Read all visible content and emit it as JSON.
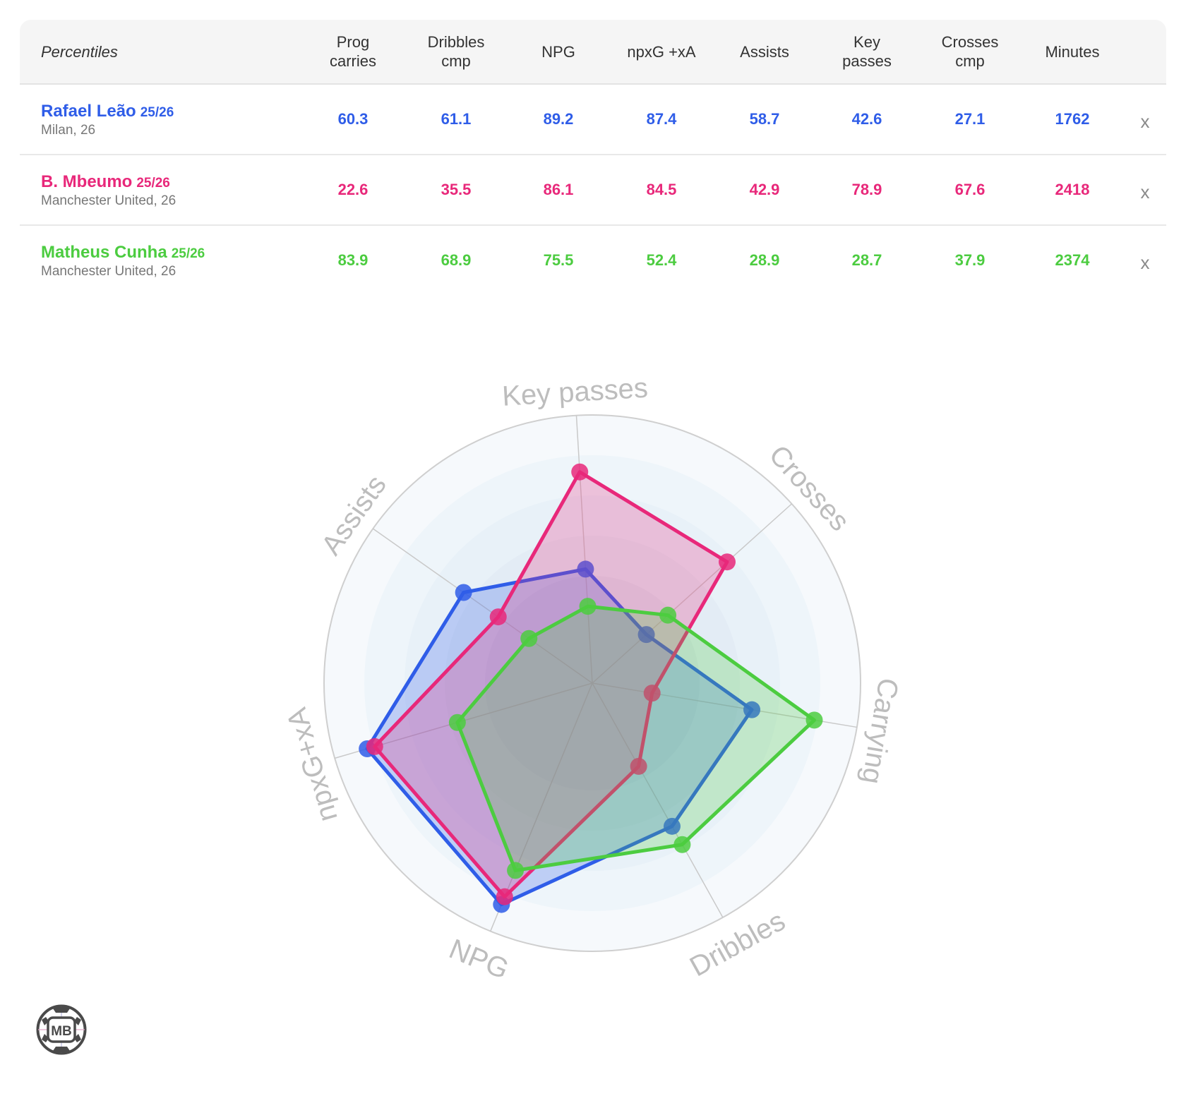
{
  "table": {
    "header_label": "Percentiles",
    "columns": [
      {
        "key": "prog_carries",
        "label_line1": "Prog",
        "label_line2": "carries"
      },
      {
        "key": "dribbles_cmp",
        "label_line1": "Dribbles",
        "label_line2": "cmp"
      },
      {
        "key": "npg",
        "label_line1": "NPG",
        "label_line2": ""
      },
      {
        "key": "npxg_xa",
        "label_line1": "npxG +xA",
        "label_line2": ""
      },
      {
        "key": "assists",
        "label_line1": "Assists",
        "label_line2": ""
      },
      {
        "key": "key_passes",
        "label_line1": "Key",
        "label_line2": "passes"
      },
      {
        "key": "crosses_cmp",
        "label_line1": "Crosses",
        "label_line2": "cmp"
      },
      {
        "key": "minutes",
        "label_line1": "Minutes",
        "label_line2": ""
      }
    ],
    "rows": [
      {
        "name": "Rafael Leão",
        "season": "25/26",
        "team_age": "Milan, 26",
        "color": "#2f5de8",
        "values": [
          "60.3",
          "61.1",
          "89.2",
          "87.4",
          "58.7",
          "42.6",
          "27.1",
          "1762"
        ],
        "remove_label": "x"
      },
      {
        "name": "B. Mbeumo",
        "season": "25/26",
        "team_age": "Manchester United, 26",
        "color": "#e8287a",
        "values": [
          "22.6",
          "35.5",
          "86.1",
          "84.5",
          "42.9",
          "78.9",
          "67.6",
          "2418"
        ],
        "remove_label": "x"
      },
      {
        "name": "Matheus Cunha",
        "season": "25/26",
        "team_age": "Manchester United, 26",
        "color": "#4ccc40",
        "values": [
          "83.9",
          "68.9",
          "75.5",
          "52.4",
          "28.9",
          "28.7",
          "37.9",
          "2374"
        ],
        "remove_label": "x"
      }
    ]
  },
  "chart_data": {
    "type": "radar",
    "title": "",
    "axes": [
      "Key passes",
      "Crosses",
      "Carrying",
      "Dribbles",
      "NPG",
      "npxG+xA",
      "Assists"
    ],
    "range": [
      0,
      100
    ],
    "series": [
      {
        "name": "Rafael Leão",
        "color": "#2f5de8",
        "values": [
          42.6,
          27.1,
          60.3,
          61.1,
          89.2,
          87.4,
          58.7
        ]
      },
      {
        "name": "B. Mbeumo",
        "color": "#e8287a",
        "values": [
          78.9,
          67.6,
          22.6,
          35.5,
          86.1,
          84.5,
          42.9
        ]
      },
      {
        "name": "Matheus Cunha",
        "color": "#4ccc40",
        "values": [
          28.7,
          37.9,
          83.9,
          68.9,
          75.5,
          52.4,
          28.9
        ]
      }
    ]
  },
  "logo": {
    "text": "MB"
  }
}
